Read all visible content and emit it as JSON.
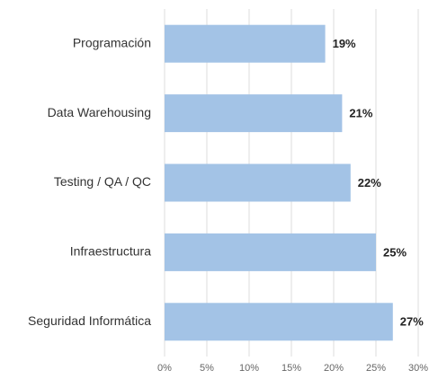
{
  "chart_data": {
    "type": "hbar",
    "categories": [
      "Programación",
      "Data Warehousing",
      "Testing / QA / QC",
      "Infraestructura",
      "Seguridad Informática"
    ],
    "values": [
      19,
      21,
      22,
      25,
      27
    ],
    "value_labels": [
      "19%",
      "21%",
      "22%",
      "25%",
      "27%"
    ],
    "color": "#a3c3e6",
    "xlim": [
      0,
      30
    ],
    "xticks": [
      {
        "value": 0,
        "label": "0%"
      },
      {
        "value": 5,
        "label": "5%"
      },
      {
        "value": 10,
        "label": "10%"
      },
      {
        "value": 15,
        "label": "15%"
      },
      {
        "value": 20,
        "label": "20%"
      },
      {
        "value": 25,
        "label": "25%"
      },
      {
        "value": 30,
        "label": "30%"
      }
    ],
    "grid": true
  }
}
